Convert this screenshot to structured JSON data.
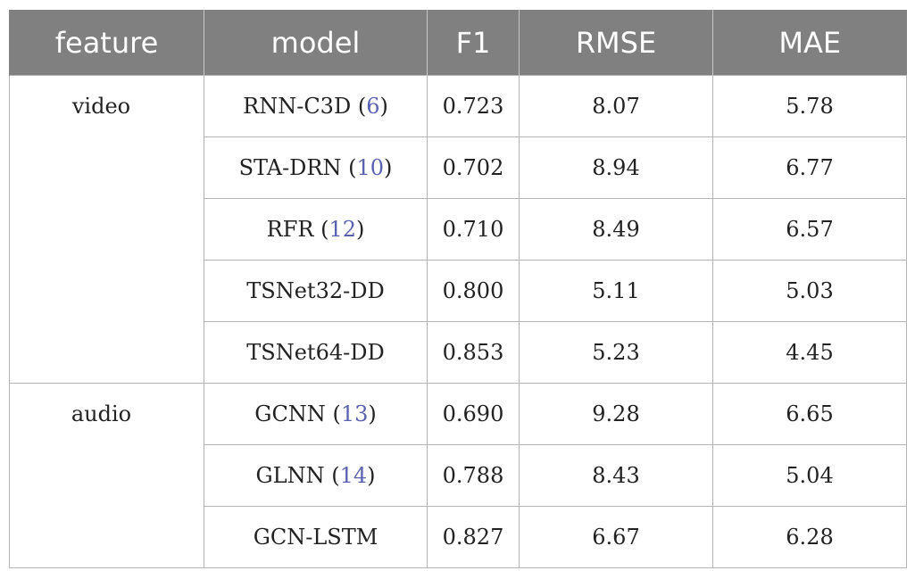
{
  "headers": [
    "feature",
    "model",
    "F1",
    "RMSE",
    "MAE"
  ],
  "groups": [
    {
      "feature": "video",
      "rows": [
        {
          "model": "RNN-C3D",
          "ref": "6",
          "f1": "0.723",
          "rmse": "8.07",
          "mae": "5.78"
        },
        {
          "model": "STA-DRN",
          "ref": "10",
          "f1": "0.702",
          "rmse": "8.94",
          "mae": "6.77"
        },
        {
          "model": "RFR",
          "ref": "12",
          "f1": "0.710",
          "rmse": "8.49",
          "mae": "6.57"
        },
        {
          "model": "TSNet32-DD",
          "ref": "",
          "f1": "0.800",
          "rmse": "5.11",
          "mae": "5.03"
        },
        {
          "model": "TSNet64-DD",
          "ref": "",
          "f1": "0.853",
          "rmse": "5.23",
          "mae": "4.45"
        }
      ]
    },
    {
      "feature": "audio",
      "rows": [
        {
          "model": "GCNN",
          "ref": "13",
          "f1": "0.690",
          "rmse": "9.28",
          "mae": "6.65"
        },
        {
          "model": "GLNN",
          "ref": "14",
          "f1": "0.788",
          "rmse": "8.43",
          "mae": "5.04"
        },
        {
          "model": "GCN-LSTM",
          "ref": "",
          "f1": "0.827",
          "rmse": "6.67",
          "mae": "6.28"
        }
      ]
    }
  ]
}
